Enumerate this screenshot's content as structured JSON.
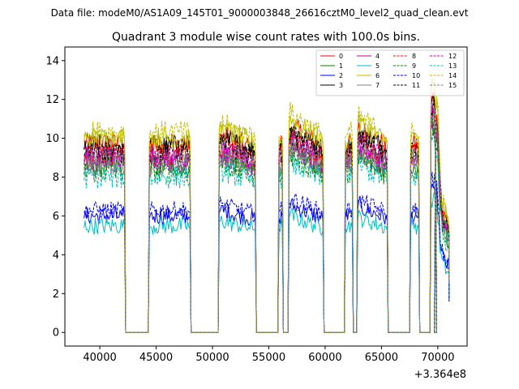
{
  "suptitle": "Data file: modeM0/AS1A09_145T01_9000003848_26616cztM0_level2_quad_clean.evt",
  "chart_data": {
    "type": "line",
    "title": "Quadrant 3 module wise count rates with 100.0s bins.",
    "xlabel": "",
    "ylabel": "",
    "offset_label": "+3.364e8",
    "xlim": [
      36900,
      72600
    ],
    "ylim": [
      -0.7,
      14.7
    ],
    "xticks": [
      40000,
      45000,
      50000,
      55000,
      60000,
      65000,
      70000
    ],
    "xtick_labels": [
      "40000",
      "45000",
      "50000",
      "55000",
      "60000",
      "65000",
      "70000"
    ],
    "yticks": [
      0,
      2,
      4,
      6,
      8,
      10,
      12,
      14
    ],
    "ytick_labels": [
      "0",
      "2",
      "4",
      "6",
      "8",
      "10",
      "12",
      "14"
    ],
    "grid": false,
    "legend_position": "top-right",
    "bin_seconds": 100,
    "on_intervals": [
      [
        38600,
        42200
      ],
      [
        44400,
        48000
      ],
      [
        50600,
        53800
      ],
      [
        55900,
        56200
      ],
      [
        56800,
        59800
      ],
      [
        61800,
        62400
      ],
      [
        62900,
        65500
      ],
      [
        67600,
        68300
      ],
      [
        69400,
        69800
      ],
      [
        69800,
        71000
      ]
    ],
    "series": [
      {
        "name": "0",
        "color": "#ff0000",
        "style": "solid",
        "level": 9.7
      },
      {
        "name": "1",
        "color": "#008000",
        "style": "solid",
        "level": 8.6
      },
      {
        "name": "2",
        "color": "#0000ff",
        "style": "solid",
        "level": 6.0
      },
      {
        "name": "3",
        "color": "#000000",
        "style": "solid",
        "level": 9.6
      },
      {
        "name": "4",
        "color": "#bf00bf",
        "style": "solid",
        "level": 8.8
      },
      {
        "name": "5",
        "color": "#00bfbf",
        "style": "solid",
        "level": 5.5
      },
      {
        "name": "6",
        "color": "#bfbf00",
        "style": "solid",
        "level": 10.0
      },
      {
        "name": "7",
        "color": "#808080",
        "style": "solid",
        "level": 8.9
      },
      {
        "name": "8",
        "color": "#ff0000",
        "style": "dashed",
        "level": 9.2
      },
      {
        "name": "9",
        "color": "#008000",
        "style": "dashed",
        "level": 8.3
      },
      {
        "name": "10",
        "color": "#0000ff",
        "style": "dashed",
        "level": 6.3
      },
      {
        "name": "11",
        "color": "#000000",
        "style": "dashed",
        "level": 9.3
      },
      {
        "name": "12",
        "color": "#bf00bf",
        "style": "dashed",
        "level": 9.0
      },
      {
        "name": "13",
        "color": "#00bfbf",
        "style": "dashed",
        "level": 8.0
      },
      {
        "name": "14",
        "color": "#bfbf00",
        "style": "dashed",
        "level": 10.3
      },
      {
        "name": "15",
        "color": "#808080",
        "style": "dashed",
        "level": 8.7
      }
    ]
  }
}
